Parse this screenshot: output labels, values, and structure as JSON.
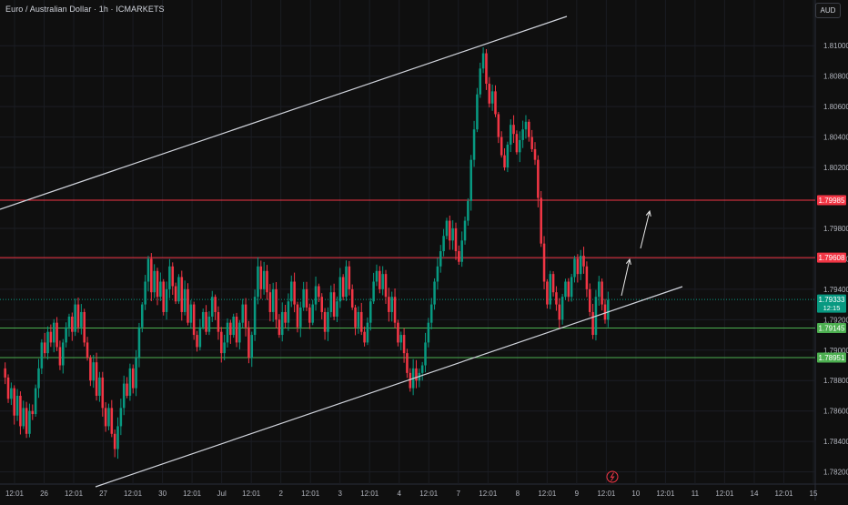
{
  "header": {
    "symbol_title": "Euro / Australian Dollar · 1h · ICMARKETS",
    "currency_button": "AUD"
  },
  "chart_data": {
    "type": "candlestick",
    "y_ticks": [
      "1.78200",
      "1.78400",
      "1.78600",
      "1.78800",
      "1.79000",
      "1.79200",
      "1.79400",
      "1.79600",
      "1.79800",
      "1.80200",
      "1.80400",
      "1.80600",
      "1.80800",
      "1.81000"
    ],
    "y_tick_values": [
      1.782,
      1.784,
      1.786,
      1.788,
      1.79,
      1.792,
      1.794,
      1.796,
      1.798,
      1.802,
      1.804,
      1.806,
      1.808,
      1.81
    ],
    "ylim": [
      1.7812,
      1.813
    ],
    "x_ticks": [
      "12:01",
      "26",
      "12:01",
      "27",
      "12:01",
      "30",
      "12:01",
      "Jul",
      "12:01",
      "2",
      "12:01",
      "3",
      "12:01",
      "4",
      "12:01",
      "7",
      "12:01",
      "8",
      "12:01",
      "9",
      "12:01",
      "10",
      "12:01",
      "11",
      "12:01",
      "14",
      "12:01",
      "15"
    ],
    "price_labels": [
      {
        "text": "1.79985",
        "value": 1.79985,
        "color": "#f23645"
      },
      {
        "text": "1.79608",
        "value": 1.79608,
        "color": "#f23645"
      },
      {
        "text": "1.79333",
        "sub": "12:15",
        "value": 1.79333,
        "color": "#089981"
      },
      {
        "text": "1.79145",
        "value": 1.79145,
        "color": "#4caf50"
      },
      {
        "text": "1.78951",
        "value": 1.78951,
        "color": "#4caf50"
      }
    ],
    "horizontal_levels": [
      {
        "value": 1.79985,
        "color": "#f23645"
      },
      {
        "value": 1.79608,
        "color": "#f23645"
      },
      {
        "value": 1.79145,
        "color": "#4caf50"
      },
      {
        "value": 1.78951,
        "color": "#4caf50"
      }
    ],
    "current_price": 1.79333,
    "up_color": "#089981",
    "down_color": "#f23645",
    "closes": [
      1.7882,
      1.7868,
      1.7875,
      1.7857,
      1.787,
      1.785,
      1.7862,
      1.7845,
      1.786,
      1.7858,
      1.7875,
      1.7888,
      1.7905,
      1.7898,
      1.7912,
      1.7905,
      1.7918,
      1.7902,
      1.789,
      1.7905,
      1.7915,
      1.7922,
      1.7912,
      1.793,
      1.7915,
      1.7925,
      1.7905,
      1.7895,
      1.788,
      1.7892,
      1.787,
      1.7882,
      1.7862,
      1.785,
      1.7862,
      1.7845,
      1.7835,
      1.785,
      1.7862,
      1.7878,
      1.787,
      1.7888,
      1.7875,
      1.7895,
      1.7915,
      1.793,
      1.7945,
      1.796,
      1.7938,
      1.7952,
      1.7935,
      1.7945,
      1.7925,
      1.794,
      1.7955,
      1.7942,
      1.7932,
      1.7948,
      1.7925,
      1.794,
      1.7918,
      1.793,
      1.791,
      1.7902,
      1.7915,
      1.7925,
      1.7912,
      1.7922,
      1.7935,
      1.7925,
      1.7912,
      1.7898,
      1.7905,
      1.7918,
      1.791,
      1.7922,
      1.7905,
      1.7918,
      1.793,
      1.7915,
      1.7895,
      1.791,
      1.7935,
      1.7955,
      1.794,
      1.7952,
      1.7938,
      1.7925,
      1.794,
      1.792,
      1.791,
      1.7925,
      1.7918,
      1.7932,
      1.7945,
      1.793,
      1.7915,
      1.7928,
      1.794,
      1.7928,
      1.7918,
      1.793,
      1.7942,
      1.7935,
      1.7925,
      1.7912,
      1.7925,
      1.7938,
      1.7922,
      1.7932,
      1.7948,
      1.7935,
      1.7955,
      1.794,
      1.7928,
      1.7915,
      1.7925,
      1.7912,
      1.7905,
      1.7918,
      1.7932,
      1.7945,
      1.7952,
      1.794,
      1.795,
      1.7935,
      1.7925,
      1.7935,
      1.7918,
      1.7905,
      1.791,
      1.7898,
      1.7885,
      1.7875,
      1.7888,
      1.788,
      1.7885,
      1.789,
      1.7905,
      1.7918,
      1.793,
      1.7945,
      1.7955,
      1.7965,
      1.7975,
      1.7985,
      1.7972,
      1.798,
      1.7965,
      1.7958,
      1.7972,
      1.7985,
      1.7998,
      1.8025,
      1.8045,
      1.8068,
      1.8085,
      1.8095,
      1.8075,
      1.8062,
      1.807,
      1.8055,
      1.804,
      1.8028,
      1.802,
      1.8035,
      1.8048,
      1.8042,
      1.803,
      1.8038,
      1.8045,
      1.805,
      1.804,
      1.8032,
      1.8025,
      1.8,
      1.797,
      1.7945,
      1.793,
      1.795,
      1.7938,
      1.793,
      1.792,
      1.7935,
      1.7945,
      1.7935,
      1.7948,
      1.796,
      1.795,
      1.7962,
      1.7955,
      1.794,
      1.7925,
      1.791,
      1.7935,
      1.7945,
      1.793,
      1.792,
      1.7933
    ]
  }
}
